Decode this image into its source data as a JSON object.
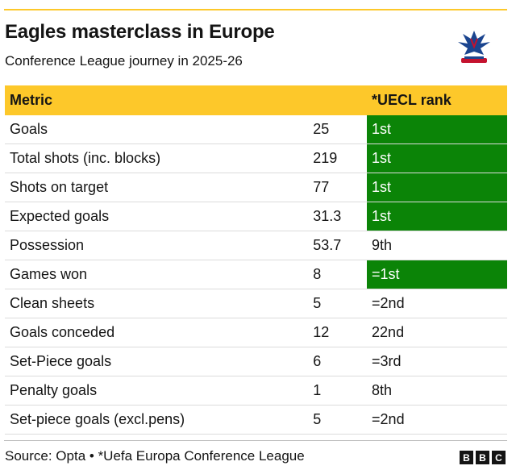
{
  "title": "Eagles masterclass in Europe",
  "subtitle": "Conference League journey in 2025-26",
  "source": "Source: Opta • *Uefa Europa Conference League",
  "brand": [
    "B",
    "B",
    "C"
  ],
  "colors": {
    "accent": "#fdc82a",
    "highlight": "#0b8407"
  },
  "chart_data": {
    "type": "table",
    "columns": [
      "Metric",
      "",
      "*UECL rank"
    ],
    "rows": [
      {
        "metric": "Goals",
        "value": "25",
        "rank": "1st",
        "highlight": true
      },
      {
        "metric": "Total shots (inc. blocks)",
        "value": "219",
        "rank": "1st",
        "highlight": true
      },
      {
        "metric": "Shots on target",
        "value": "77",
        "rank": "1st",
        "highlight": true
      },
      {
        "metric": "Expected goals",
        "value": "31.3",
        "rank": "1st",
        "highlight": true
      },
      {
        "metric": "Possession",
        "value": "53.7",
        "rank": "9th",
        "highlight": false
      },
      {
        "metric": "Games won",
        "value": "8",
        "rank": "=1st",
        "highlight": true
      },
      {
        "metric": "Clean sheets",
        "value": "5",
        "rank": "=2nd",
        "highlight": false
      },
      {
        "metric": "Goals conceded",
        "value": "12",
        "rank": "22nd",
        "highlight": false
      },
      {
        "metric": "Set-Piece goals",
        "value": "6",
        "rank": "=3rd",
        "highlight": false
      },
      {
        "metric": "Penalty goals",
        "value": "1",
        "rank": "8th",
        "highlight": false
      },
      {
        "metric": "Set-piece goals (excl.pens)",
        "value": "5",
        "rank": "=2nd",
        "highlight": false
      }
    ]
  }
}
